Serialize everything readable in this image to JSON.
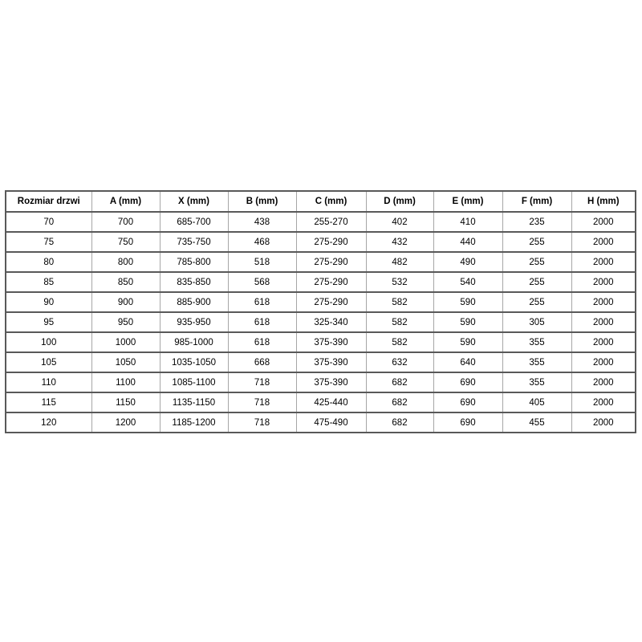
{
  "table": {
    "title_semantic": "door-dimensions-table",
    "headers": [
      "Rozmiar drzwi",
      "A (mm)",
      "X (mm)",
      "B (mm)",
      "C (mm)",
      "D (mm)",
      "E (mm)",
      "F (mm)",
      "H (mm)"
    ],
    "rows": [
      [
        "70",
        "700",
        "685-700",
        "438",
        "255-270",
        "402",
        "410",
        "235",
        "2000"
      ],
      [
        "75",
        "750",
        "735-750",
        "468",
        "275-290",
        "432",
        "440",
        "255",
        "2000"
      ],
      [
        "80",
        "800",
        "785-800",
        "518",
        "275-290",
        "482",
        "490",
        "255",
        "2000"
      ],
      [
        "85",
        "850",
        "835-850",
        "568",
        "275-290",
        "532",
        "540",
        "255",
        "2000"
      ],
      [
        "90",
        "900",
        "885-900",
        "618",
        "275-290",
        "582",
        "590",
        "255",
        "2000"
      ],
      [
        "95",
        "950",
        "935-950",
        "618",
        "325-340",
        "582",
        "590",
        "305",
        "2000"
      ],
      [
        "100",
        "1000",
        "985-1000",
        "618",
        "375-390",
        "582",
        "590",
        "355",
        "2000"
      ],
      [
        "105",
        "1050",
        "1035-1050",
        "668",
        "375-390",
        "632",
        "640",
        "355",
        "2000"
      ],
      [
        "110",
        "1100",
        "1085-1100",
        "718",
        "375-390",
        "682",
        "690",
        "355",
        "2000"
      ],
      [
        "115",
        "1150",
        "1135-1150",
        "718",
        "425-440",
        "682",
        "690",
        "405",
        "2000"
      ],
      [
        "120",
        "1200",
        "1185-1200",
        "718",
        "475-490",
        "682",
        "690",
        "455",
        "2000"
      ]
    ],
    "colors": {
      "horizontal_border": "#595959",
      "vertical_border": "#a6a6a6",
      "text": "#000000",
      "background": "#ffffff"
    }
  }
}
